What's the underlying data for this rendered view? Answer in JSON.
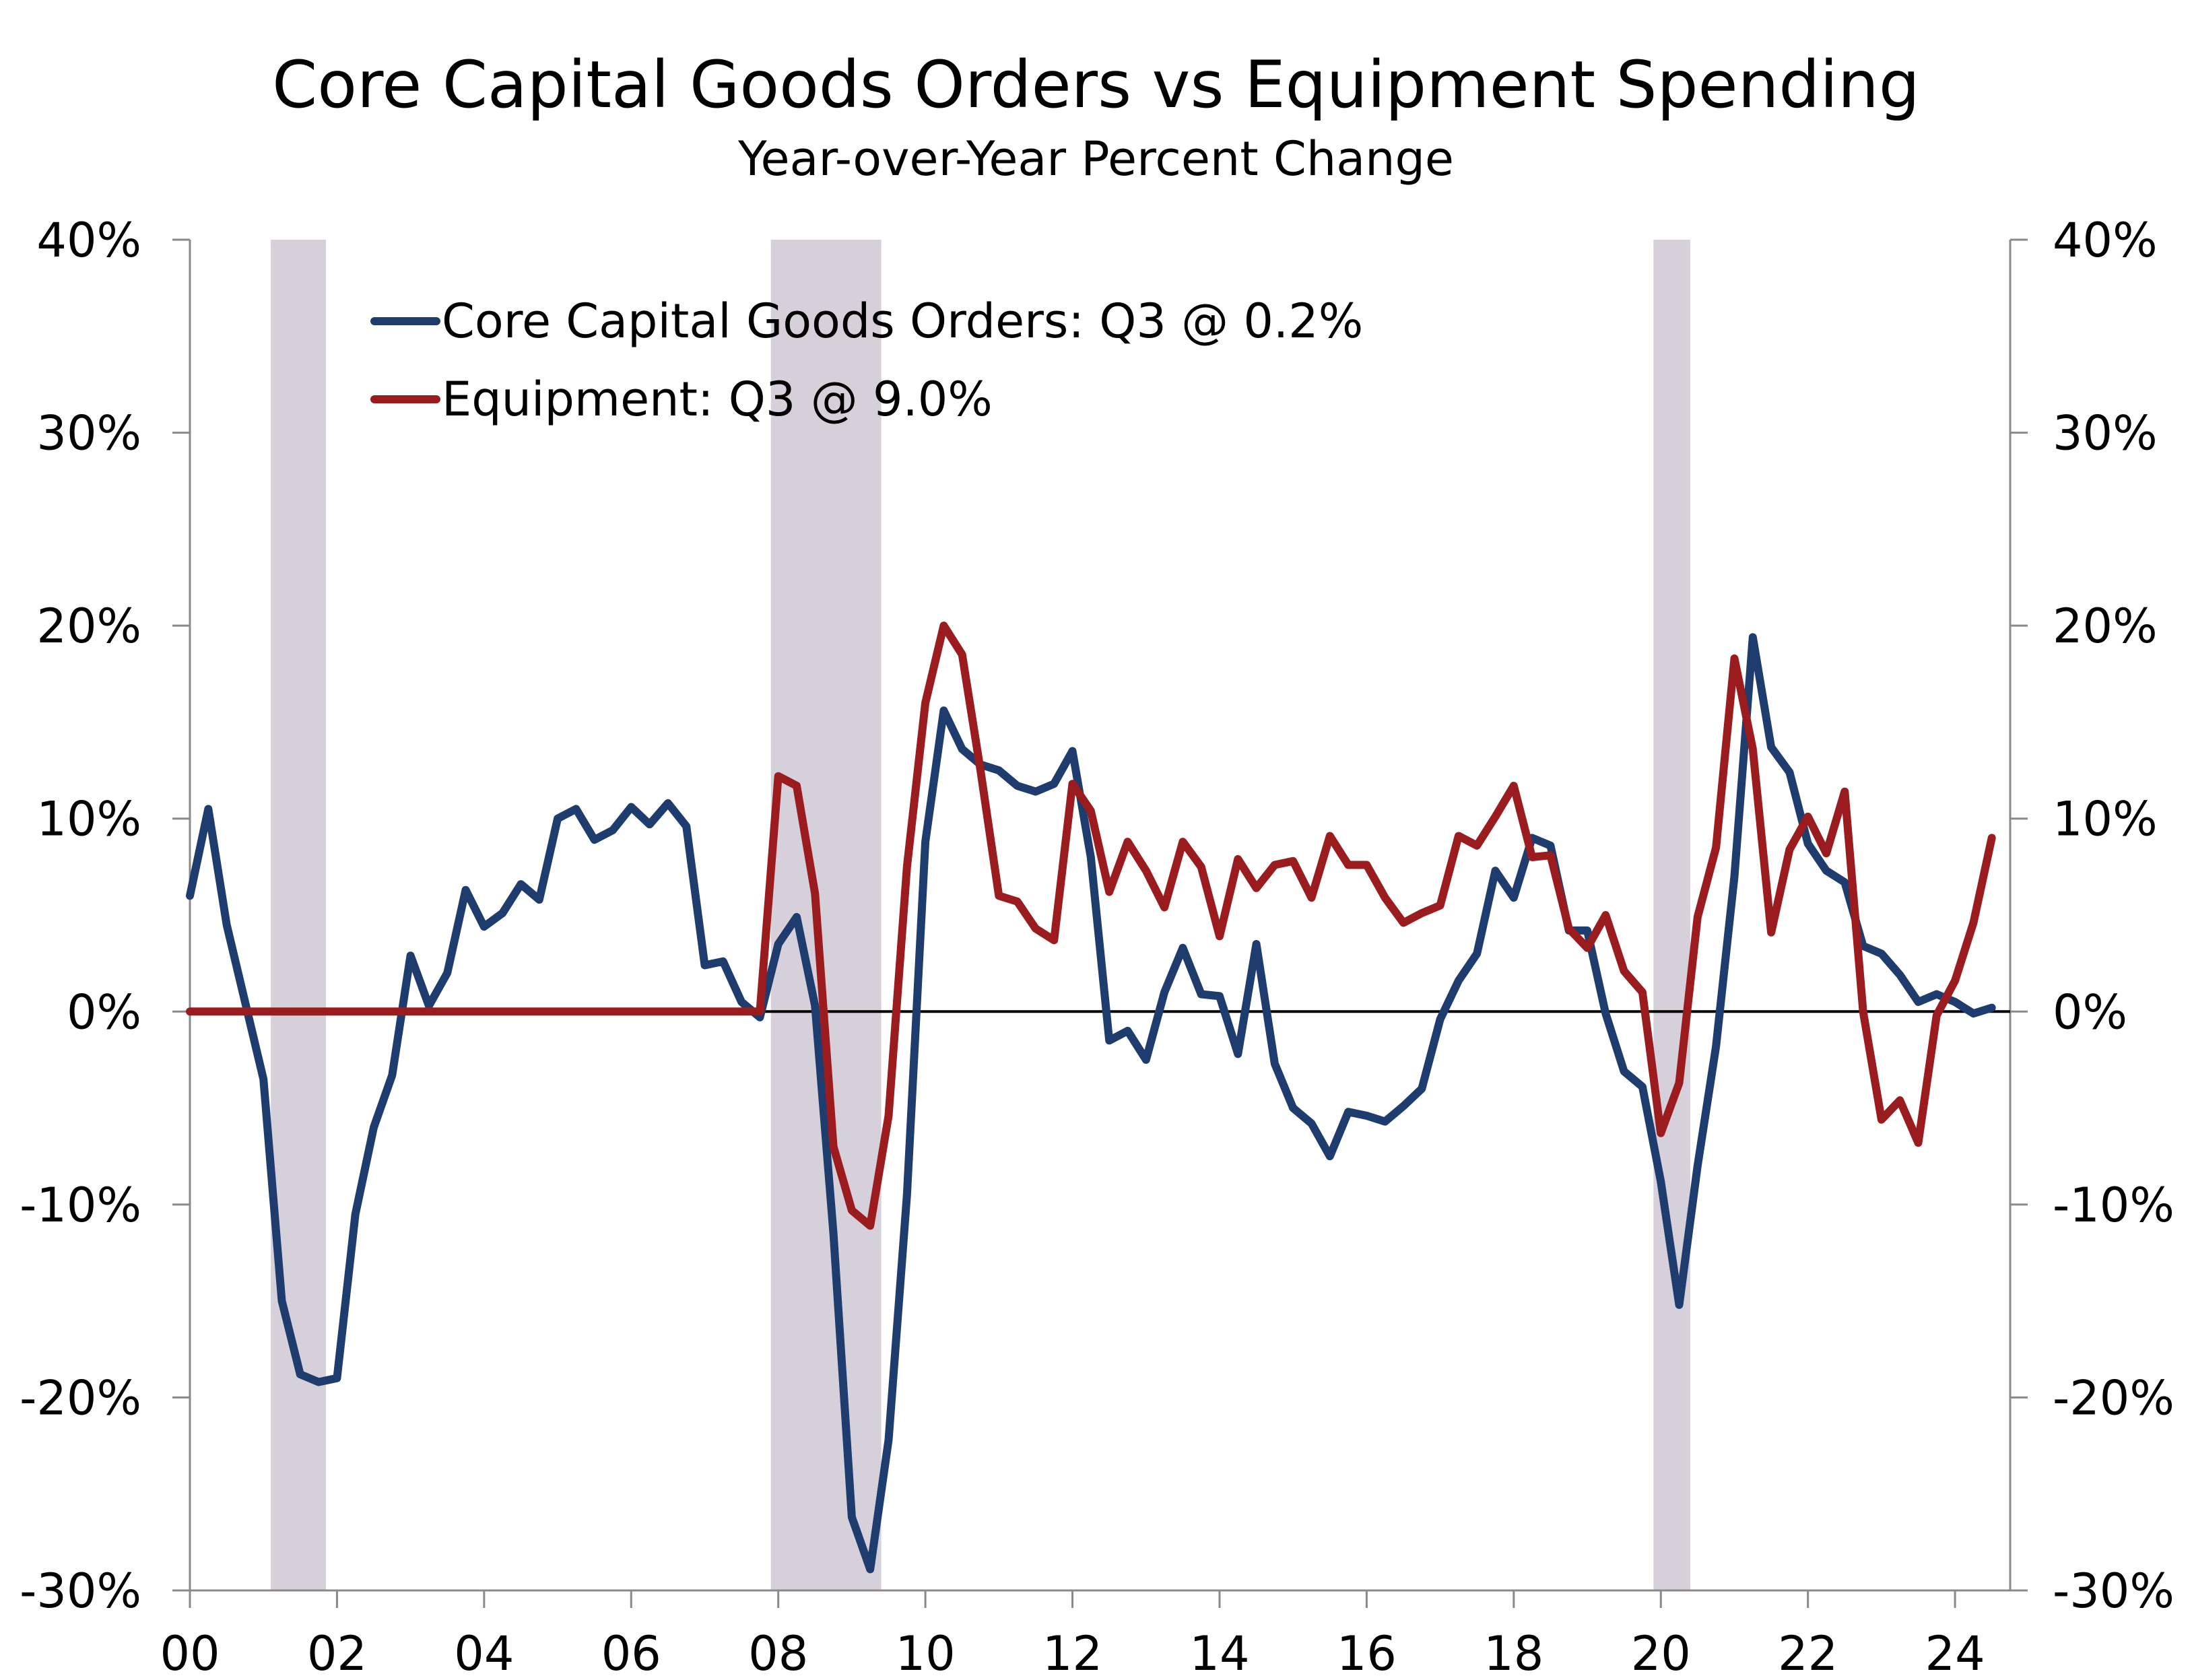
{
  "chart_data": {
    "type": "line",
    "title": "Core Capital Goods Orders vs Equipment Spending",
    "subtitle": "Year-over-Year Percent Change",
    "x_ticks": [
      "00",
      "02",
      "04",
      "06",
      "08",
      "10",
      "12",
      "14",
      "16",
      "18",
      "20",
      "22",
      "24"
    ],
    "y_ticks_left": [
      "40%",
      "30%",
      "20%",
      "10%",
      "0%",
      "-10%",
      "-20%",
      "-30%"
    ],
    "y_ticks_right": [
      "40%",
      "30%",
      "20%",
      "10%",
      "0%",
      "-10%",
      "-20%",
      "-30%"
    ],
    "ylim": [
      -30,
      40
    ],
    "xlim": [
      2000.0,
      2024.75
    ],
    "recessions": [
      [
        2001.1,
        2001.85
      ],
      [
        2007.9,
        2009.4
      ],
      [
        2019.9,
        2020.4
      ]
    ],
    "series": [
      {
        "name": "Core Capital Goods Orders: Q3 @ 0.2%",
        "color": "#1f3c6e",
        "points": [
          [
            2000.0,
            6.0
          ],
          [
            2000.25,
            10.5
          ],
          [
            2000.5,
            4.5
          ],
          [
            2000.75,
            0.5
          ],
          [
            2001.0,
            -3.5
          ],
          [
            2001.25,
            -15.0
          ],
          [
            2001.5,
            -18.8
          ],
          [
            2001.75,
            -19.2
          ],
          [
            2002.0,
            -19.0
          ],
          [
            2002.25,
            -10.5
          ],
          [
            2002.5,
            -6.0
          ],
          [
            2002.75,
            -3.3
          ],
          [
            2003.0,
            2.9
          ],
          [
            2003.25,
            0.3
          ],
          [
            2003.5,
            2.0
          ],
          [
            2003.75,
            6.3
          ],
          [
            2004.0,
            4.4
          ],
          [
            2004.25,
            5.1
          ],
          [
            2004.5,
            6.6
          ],
          [
            2004.75,
            5.8
          ],
          [
            2005.0,
            10.0
          ],
          [
            2005.25,
            10.5
          ],
          [
            2005.5,
            8.9
          ],
          [
            2005.75,
            9.4
          ],
          [
            2006.0,
            10.6
          ],
          [
            2006.25,
            9.7
          ],
          [
            2006.5,
            10.8
          ],
          [
            2006.75,
            9.6
          ],
          [
            2007.0,
            2.4
          ],
          [
            2007.25,
            2.6
          ],
          [
            2007.5,
            0.5
          ],
          [
            2007.75,
            -0.3
          ],
          [
            2008.0,
            3.5
          ],
          [
            2008.25,
            4.9
          ],
          [
            2008.5,
            0.3
          ],
          [
            2008.75,
            -11.5
          ],
          [
            2009.0,
            -26.2
          ],
          [
            2009.25,
            -28.9
          ],
          [
            2009.5,
            -22.2
          ],
          [
            2009.75,
            -9.5
          ],
          [
            2010.0,
            8.8
          ],
          [
            2010.25,
            15.6
          ],
          [
            2010.5,
            13.6
          ],
          [
            2010.75,
            12.8
          ],
          [
            2011.0,
            12.5
          ],
          [
            2011.25,
            11.7
          ],
          [
            2011.5,
            11.4
          ],
          [
            2011.75,
            11.8
          ],
          [
            2012.0,
            13.5
          ],
          [
            2012.25,
            8.0
          ],
          [
            2012.5,
            -1.5
          ],
          [
            2012.75,
            -1.0
          ],
          [
            2013.0,
            -2.5
          ],
          [
            2013.25,
            1.0
          ],
          [
            2013.5,
            3.3
          ],
          [
            2013.75,
            0.9
          ],
          [
            2014.0,
            0.8
          ],
          [
            2014.25,
            -2.2
          ],
          [
            2014.5,
            3.5
          ],
          [
            2014.75,
            -2.7
          ],
          [
            2015.0,
            -5.0
          ],
          [
            2015.25,
            -5.8
          ],
          [
            2015.5,
            -7.5
          ],
          [
            2015.75,
            -5.2
          ],
          [
            2016.0,
            -5.4
          ],
          [
            2016.25,
            -5.7
          ],
          [
            2016.5,
            -4.9
          ],
          [
            2016.75,
            -4.0
          ],
          [
            2017.0,
            -0.4
          ],
          [
            2017.25,
            1.6
          ],
          [
            2017.5,
            3.0
          ],
          [
            2017.75,
            7.3
          ],
          [
            2018.0,
            5.9
          ],
          [
            2018.25,
            9.0
          ],
          [
            2018.5,
            8.6
          ],
          [
            2018.75,
            4.2
          ],
          [
            2019.0,
            4.2
          ],
          [
            2019.25,
            -0.1
          ],
          [
            2019.5,
            -3.1
          ],
          [
            2019.75,
            -3.9
          ],
          [
            2020.0,
            -8.8
          ],
          [
            2020.25,
            -15.2
          ],
          [
            2020.5,
            -8.0
          ],
          [
            2020.75,
            -1.8
          ],
          [
            2021.0,
            7.0
          ],
          [
            2021.25,
            19.4
          ],
          [
            2021.5,
            13.7
          ],
          [
            2021.75,
            12.4
          ],
          [
            2022.0,
            8.7
          ],
          [
            2022.25,
            7.3
          ],
          [
            2022.5,
            6.7
          ],
          [
            2022.75,
            3.4
          ],
          [
            2023.0,
            3.0
          ],
          [
            2023.25,
            1.9
          ],
          [
            2023.5,
            0.5
          ],
          [
            2023.75,
            0.9
          ],
          [
            2024.0,
            0.5
          ],
          [
            2024.25,
            -0.1
          ],
          [
            2024.5,
            0.2
          ]
        ]
      },
      {
        "name": "Equipment: Q3 @ 9.0%",
        "color": "#9b1c1f",
        "points": [
          [
            2000.0,
            0.0
          ],
          [
            2007.75,
            0.0
          ],
          [
            2008.0,
            12.2
          ],
          [
            2008.25,
            11.7
          ],
          [
            2008.5,
            6.1
          ],
          [
            2008.75,
            -7.0
          ],
          [
            2009.0,
            -10.3
          ],
          [
            2009.25,
            -11.1
          ],
          [
            2009.5,
            -5.4
          ],
          [
            2009.75,
            7.5
          ],
          [
            2010.0,
            16.0
          ],
          [
            2010.25,
            20.0
          ],
          [
            2010.5,
            18.5
          ],
          [
            2010.75,
            12.5
          ],
          [
            2011.0,
            6.0
          ],
          [
            2011.25,
            5.7
          ],
          [
            2011.5,
            4.3
          ],
          [
            2011.75,
            3.7
          ],
          [
            2012.0,
            11.8
          ],
          [
            2012.25,
            10.4
          ],
          [
            2012.5,
            6.2
          ],
          [
            2012.75,
            8.8
          ],
          [
            2013.0,
            7.3
          ],
          [
            2013.25,
            5.4
          ],
          [
            2013.5,
            8.8
          ],
          [
            2013.75,
            7.5
          ],
          [
            2014.0,
            3.9
          ],
          [
            2014.25,
            7.9
          ],
          [
            2014.5,
            6.4
          ],
          [
            2014.75,
            7.6
          ],
          [
            2015.0,
            7.8
          ],
          [
            2015.25,
            5.9
          ],
          [
            2015.5,
            9.1
          ],
          [
            2015.75,
            7.6
          ],
          [
            2016.0,
            7.6
          ],
          [
            2016.25,
            5.9
          ],
          [
            2016.5,
            4.6
          ],
          [
            2016.75,
            5.1
          ],
          [
            2017.0,
            5.5
          ],
          [
            2017.25,
            9.1
          ],
          [
            2017.5,
            8.6
          ],
          [
            2017.75,
            10.1
          ],
          [
            2018.0,
            11.7
          ],
          [
            2018.25,
            8.0
          ],
          [
            2018.5,
            8.1
          ],
          [
            2018.75,
            4.3
          ],
          [
            2019.0,
            3.3
          ],
          [
            2019.25,
            5.0
          ],
          [
            2019.5,
            2.1
          ],
          [
            2019.75,
            1.0
          ],
          [
            2020.0,
            -6.3
          ],
          [
            2020.25,
            -3.7
          ],
          [
            2020.5,
            4.9
          ],
          [
            2020.75,
            8.5
          ],
          [
            2021.0,
            18.3
          ],
          [
            2021.25,
            13.6
          ],
          [
            2021.5,
            4.1
          ],
          [
            2021.75,
            8.4
          ],
          [
            2022.0,
            10.1
          ],
          [
            2022.25,
            8.2
          ],
          [
            2022.5,
            11.4
          ],
          [
            2022.75,
            0.0
          ],
          [
            2023.0,
            -5.6
          ],
          [
            2023.25,
            -4.6
          ],
          [
            2023.5,
            -6.8
          ],
          [
            2023.75,
            -0.2
          ],
          [
            2024.0,
            1.6
          ],
          [
            2024.25,
            4.6
          ],
          [
            2024.5,
            9.0
          ]
        ]
      }
    ],
    "legend_placement": "top-left",
    "grid": false
  }
}
